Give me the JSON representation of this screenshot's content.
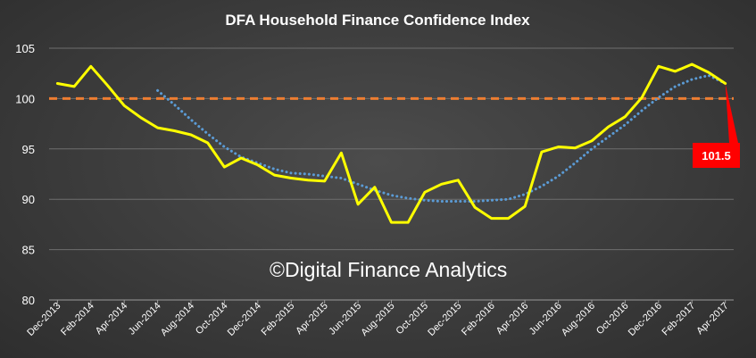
{
  "chart_data": {
    "type": "line",
    "title": "DFA Household Finance Confidence Index",
    "watermark": "©Digital Finance Analytics",
    "ylim": [
      80,
      105
    ],
    "yticks": [
      80,
      85,
      90,
      95,
      100,
      105
    ],
    "xlim": [
      "Dec-2013",
      "May-2017"
    ],
    "x": [
      "Dec-2013",
      "Jan-2014",
      "Feb-2014",
      "Mar-2014",
      "Apr-2014",
      "May-2014",
      "Jun-2014",
      "Jul-2014",
      "Aug-2014",
      "Sep-2014",
      "Oct-2014",
      "Nov-2014",
      "Dec-2014",
      "Jan-2015",
      "Feb-2015",
      "Mar-2015",
      "Apr-2015",
      "May-2015",
      "Jun-2015",
      "Jul-2015",
      "Aug-2015",
      "Sep-2015",
      "Oct-2015",
      "Nov-2015",
      "Dec-2015",
      "Jan-2016",
      "Feb-2016",
      "Mar-2016",
      "Apr-2016",
      "May-2016",
      "Jun-2016",
      "Jul-2016",
      "Aug-2016",
      "Sep-2016",
      "Oct-2016",
      "Nov-2016",
      "Dec-2016",
      "Jan-2017",
      "Feb-2017",
      "Mar-2017",
      "Apr-2017"
    ],
    "xtick_labels": [
      "Dec-2013",
      "Feb-2014",
      "Apr-2014",
      "Jun-2014",
      "Aug-2014",
      "Oct-2014",
      "Dec-2014",
      "Feb-2015",
      "Apr-2015",
      "Jun-2015",
      "Aug-2015",
      "Oct-2015",
      "Dec-2015",
      "Feb-2016",
      "Apr-2016",
      "Jun-2016",
      "Aug-2016",
      "Oct-2016",
      "Dec-2016",
      "Feb-2017",
      "Apr-2017"
    ],
    "series": [
      {
        "name": "",
        "color": "#ffff00",
        "style": "solid",
        "values": [
          101.5,
          101.2,
          103.2,
          101.3,
          99.3,
          98.1,
          97.1,
          96.8,
          96.4,
          95.6,
          93.2,
          94.1,
          93.4,
          92.4,
          92.1,
          91.9,
          91.8,
          94.6,
          89.5,
          91.2,
          87.7,
          87.7,
          90.7,
          91.5,
          91.9,
          89.2,
          88.1,
          88.1,
          89.3,
          94.7,
          95.2,
          95.1,
          95.8,
          97.2,
          98.2,
          100.1,
          103.2,
          102.7,
          103.4,
          102.6,
          101.5
        ]
      },
      {
        "name": "",
        "color": "#5b9bd5",
        "style": "dotted",
        "values": [
          null,
          null,
          null,
          null,
          null,
          null,
          100.8,
          99.4,
          97.9,
          96.5,
          95.2,
          94.2,
          93.6,
          93.0,
          92.6,
          92.5,
          92.3,
          92.1,
          91.5,
          90.9,
          90.4,
          90.1,
          89.9,
          89.8,
          89.8,
          89.8,
          89.9,
          90.0,
          90.5,
          91.3,
          92.3,
          93.6,
          95.0,
          96.2,
          97.4,
          98.8,
          100.1,
          101.2,
          101.9,
          102.3,
          101.5
        ]
      },
      {
        "name": "",
        "color": "#ed7d31",
        "style": "dashed",
        "values": [
          100,
          100,
          100,
          100,
          100,
          100,
          100,
          100,
          100,
          100,
          100,
          100,
          100,
          100,
          100,
          100,
          100,
          100,
          100,
          100,
          100,
          100,
          100,
          100,
          100,
          100,
          100,
          100,
          100,
          100,
          100,
          100,
          100,
          100,
          100,
          100,
          100,
          100,
          100,
          100,
          100
        ]
      }
    ],
    "annotation": {
      "text": "101.5",
      "x": "Apr-2017",
      "y": 101.5,
      "color": "#ff0000"
    },
    "grid": true,
    "legend": "none"
  }
}
